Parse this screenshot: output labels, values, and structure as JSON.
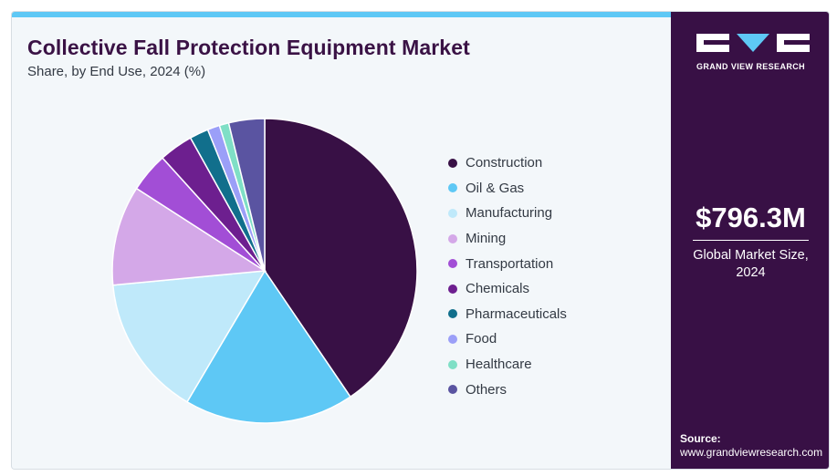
{
  "chart_data": {
    "type": "pie",
    "title": "Collective Fall Protection Equipment Market",
    "subtitle": "Share, by End Use, 2024 (%)",
    "start_angle_deg": 0,
    "direction": "clockwise",
    "legend_position": "right",
    "slices": [
      {
        "label": "Construction",
        "value": 40.5,
        "color": "#381045"
      },
      {
        "label": "Oil & Gas",
        "value": 18.0,
        "color": "#5ec8f5"
      },
      {
        "label": "Manufacturing",
        "value": 15.0,
        "color": "#bfe9fa"
      },
      {
        "label": "Mining",
        "value": 10.6,
        "color": "#d4a8e8"
      },
      {
        "label": "Transportation",
        "value": 4.2,
        "color": "#a24ed6"
      },
      {
        "label": "Chemicals",
        "value": 3.6,
        "color": "#6d1f8f"
      },
      {
        "label": "Pharmaceuticals",
        "value": 2.0,
        "color": "#116f8c"
      },
      {
        "label": "Food",
        "value": 1.3,
        "color": "#9b9ff8"
      },
      {
        "label": "Healthcare",
        "value": 1.0,
        "color": "#7fdfc6"
      },
      {
        "label": "Others",
        "value": 3.8,
        "color": "#5a54a1"
      }
    ]
  },
  "sidebar": {
    "brand_text": "GRAND VIEW RESEARCH",
    "market_size_value": "$796.3M",
    "market_size_label": "Global Market Size, 2024",
    "source_label": "Source:",
    "source_url": "www.grandviewresearch.com"
  },
  "colors": {
    "accent_bar": "#5ec8f5",
    "sidebar_bg": "#381045",
    "title": "#3a1245"
  }
}
